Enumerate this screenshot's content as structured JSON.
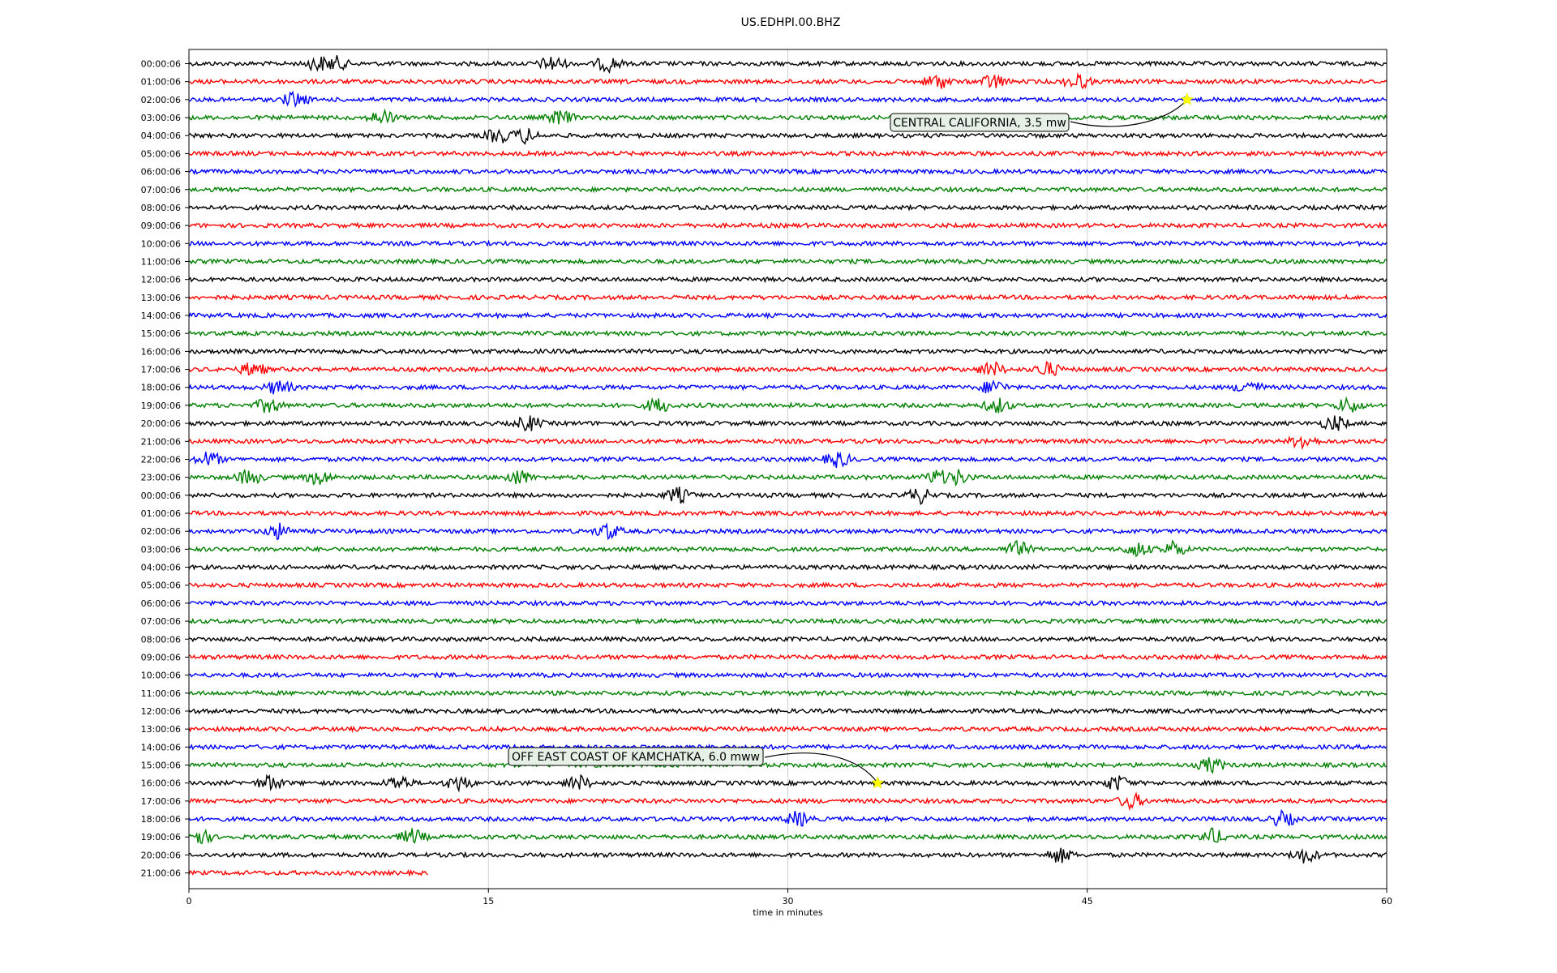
{
  "chart_data": {
    "type": "line",
    "title": "US.EDHPI.00.BHZ",
    "xlabel": "time in minutes",
    "ylabel": "",
    "xlim": [
      0,
      60
    ],
    "xticks": [
      "0",
      "15",
      "30",
      "45",
      "60"
    ],
    "grid": "vertical at 15, 30, 45",
    "color_cycle": [
      "#000000",
      "#ff0000",
      "#0000ff",
      "#008000"
    ],
    "row_labels": [
      "00:00:06",
      "01:00:06",
      "02:00:06",
      "03:00:06",
      "04:00:06",
      "05:00:06",
      "06:00:06",
      "07:00:06",
      "08:00:06",
      "09:00:06",
      "10:00:06",
      "11:00:06",
      "12:00:06",
      "13:00:06",
      "14:00:06",
      "15:00:06",
      "16:00:06",
      "17:00:06",
      "18:00:06",
      "19:00:06",
      "20:00:06",
      "21:00:06",
      "22:00:06",
      "23:00:06",
      "00:00:06",
      "01:00:06",
      "02:00:06",
      "03:00:06",
      "04:00:06",
      "05:00:06",
      "06:00:06",
      "07:00:06",
      "08:00:06",
      "09:00:06",
      "10:00:06",
      "11:00:06",
      "12:00:06",
      "13:00:06",
      "14:00:06",
      "15:00:06",
      "16:00:06",
      "17:00:06",
      "18:00:06",
      "19:00:06",
      "20:00:06",
      "21:00:06"
    ],
    "last_row_end_minute": 12,
    "bursts": [
      {
        "row": 0,
        "minute": 6.5
      },
      {
        "row": 0,
        "minute": 7.3
      },
      {
        "row": 0,
        "minute": 18.2
      },
      {
        "row": 0,
        "minute": 21
      },
      {
        "row": 1,
        "minute": 37.5
      },
      {
        "row": 1,
        "minute": 40.3
      },
      {
        "row": 1,
        "minute": 44.5
      },
      {
        "row": 2,
        "minute": 5.3
      },
      {
        "row": 3,
        "minute": 9.7
      },
      {
        "row": 3,
        "minute": 18.6
      },
      {
        "row": 4,
        "minute": 15.5
      },
      {
        "row": 4,
        "minute": 16.8
      },
      {
        "row": 17,
        "minute": 3.2
      },
      {
        "row": 17,
        "minute": 40.2
      },
      {
        "row": 17,
        "minute": 43
      },
      {
        "row": 18,
        "minute": 4.5
      },
      {
        "row": 18,
        "minute": 40.3
      },
      {
        "row": 18,
        "minute": 53.1
      },
      {
        "row": 19,
        "minute": 4
      },
      {
        "row": 19,
        "minute": 23.5
      },
      {
        "row": 19,
        "minute": 40.5
      },
      {
        "row": 19,
        "minute": 58.1
      },
      {
        "row": 20,
        "minute": 17
      },
      {
        "row": 20,
        "minute": 57.4
      },
      {
        "row": 21,
        "minute": 55.8
      },
      {
        "row": 22,
        "minute": 1
      },
      {
        "row": 22,
        "minute": 32.5
      },
      {
        "row": 23,
        "minute": 3
      },
      {
        "row": 23,
        "minute": 6.5
      },
      {
        "row": 23,
        "minute": 16.5
      },
      {
        "row": 23,
        "minute": 37.5
      },
      {
        "row": 23,
        "minute": 38.5
      },
      {
        "row": 24,
        "minute": 24.5
      },
      {
        "row": 24,
        "minute": 36.6
      },
      {
        "row": 26,
        "minute": 4.5
      },
      {
        "row": 26,
        "minute": 21
      },
      {
        "row": 27,
        "minute": 41.5
      },
      {
        "row": 27,
        "minute": 47.5
      },
      {
        "row": 27,
        "minute": 49.3
      },
      {
        "row": 39,
        "minute": 51.2
      },
      {
        "row": 40,
        "minute": 4.1
      },
      {
        "row": 40,
        "minute": 10.5
      },
      {
        "row": 40,
        "minute": 13.5
      },
      {
        "row": 40,
        "minute": 19.5
      },
      {
        "row": 40,
        "minute": 46.5
      },
      {
        "row": 41,
        "minute": 47.2
      },
      {
        "row": 42,
        "minute": 30.5
      },
      {
        "row": 42,
        "minute": 54.8
      },
      {
        "row": 43,
        "minute": 0.5
      },
      {
        "row": 43,
        "minute": 11.2
      },
      {
        "row": 43,
        "minute": 51.3
      },
      {
        "row": 44,
        "minute": 43.6
      },
      {
        "row": 44,
        "minute": 55.9
      }
    ],
    "annotations": [
      {
        "text": "CENTRAL CALIFORNIA, 3.5 mw",
        "row": 2,
        "minute": 50
      },
      {
        "text": "OFF EAST COAST OF KAMCHATKA, 6.0 mww",
        "row": 40,
        "minute": 34.5
      }
    ]
  }
}
